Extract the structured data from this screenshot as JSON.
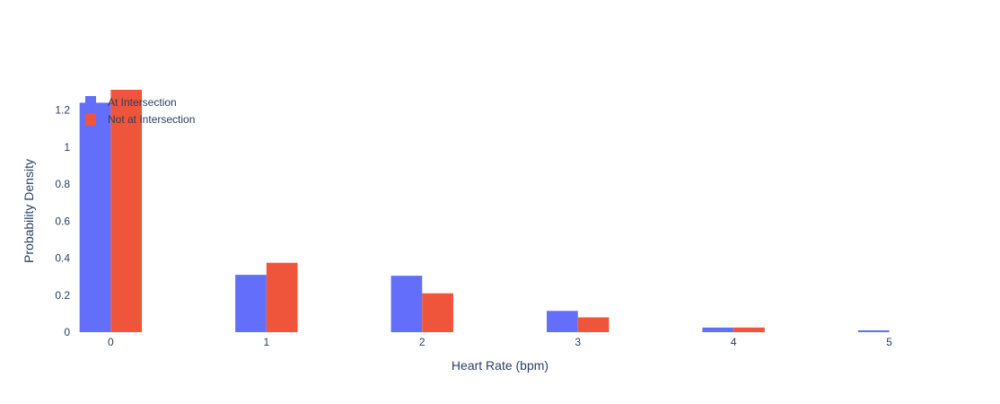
{
  "chart_data": {
    "type": "bar",
    "title": "",
    "xlabel": "Heart Rate (bpm)",
    "ylabel": "Probability Density",
    "categories": [
      "0",
      "1",
      "2",
      "3",
      "4",
      "5"
    ],
    "x": [
      0,
      1,
      2,
      3,
      4,
      5
    ],
    "ylim": [
      0,
      1.31
    ],
    "yticks": [
      0,
      0.2,
      0.4,
      0.6,
      0.8,
      1,
      1.2
    ],
    "ytick_labels": [
      "0",
      "0.2",
      "0.4",
      "0.6",
      "0.8",
      "1",
      "1.2"
    ],
    "grid": false,
    "legend_position": "top-left",
    "series": [
      {
        "name": "At Intersection",
        "color": "#636efa",
        "values": [
          1.24,
          0.31,
          0.305,
          0.115,
          0.025,
          0.01
        ]
      },
      {
        "name": "Not at Intersection",
        "color": "#ef553b",
        "values": [
          1.31,
          0.375,
          0.21,
          0.08,
          0.025,
          0
        ]
      }
    ]
  }
}
